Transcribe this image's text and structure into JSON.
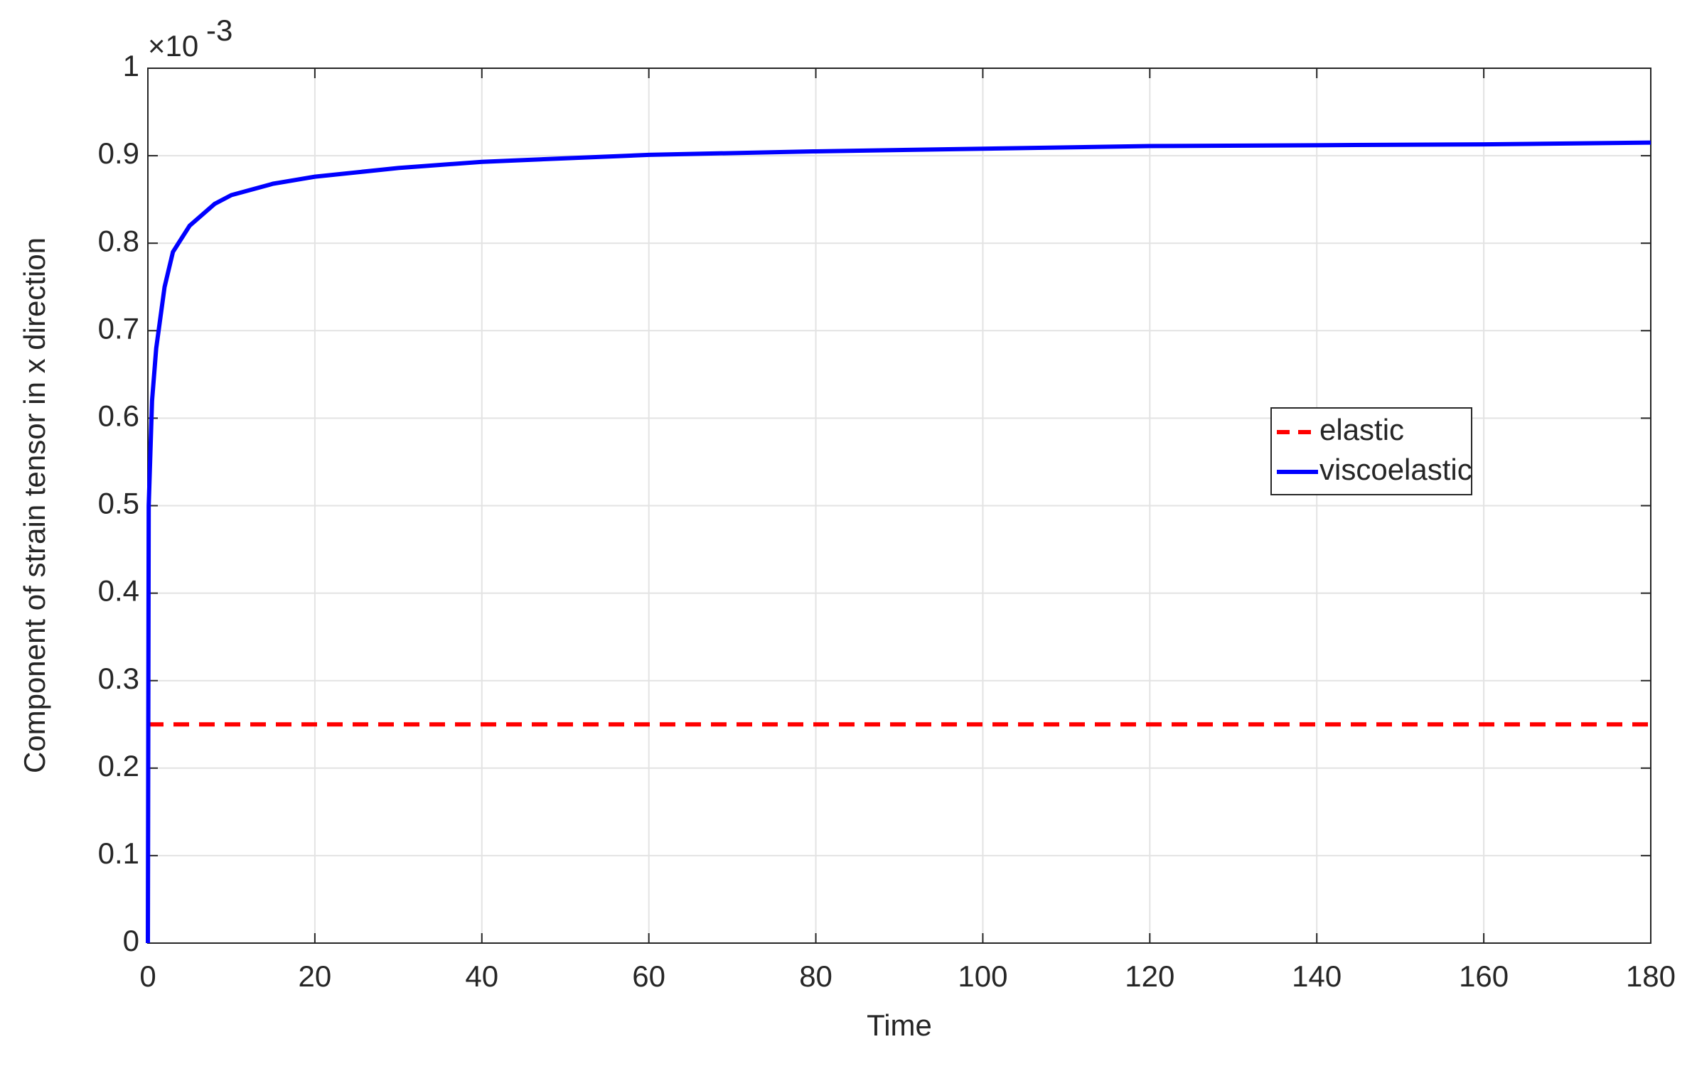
{
  "chart_data": {
    "type": "line",
    "x_label": "Time",
    "y_label": "Component of strain tensor in x direction",
    "y_scale_base": "×10",
    "y_scale_exponent": "-3",
    "x": [
      0,
      0.1,
      0.5,
      1,
      2,
      3,
      5,
      8,
      10,
      15,
      20,
      30,
      40,
      50,
      60,
      80,
      100,
      120,
      140,
      160,
      180
    ],
    "series": [
      {
        "name": "elastic",
        "color": "#ff0000",
        "dash": true,
        "values": [
          0.25,
          0.25,
          0.25,
          0.25,
          0.25,
          0.25,
          0.25,
          0.25,
          0.25,
          0.25,
          0.25,
          0.25,
          0.25,
          0.25,
          0.25,
          0.25,
          0.25,
          0.25,
          0.25,
          0.25,
          0.25
        ]
      },
      {
        "name": "viscoelastic",
        "color": "#0000ff",
        "dash": false,
        "values": [
          0,
          0.5,
          0.62,
          0.68,
          0.75,
          0.79,
          0.82,
          0.845,
          0.855,
          0.868,
          0.876,
          0.886,
          0.893,
          0.897,
          0.901,
          0.905,
          0.908,
          0.911,
          0.912,
          0.913,
          0.915
        ]
      }
    ],
    "xlim": [
      0,
      180
    ],
    "xticks": [
      0,
      20,
      40,
      60,
      80,
      100,
      120,
      140,
      160,
      180
    ],
    "ylim": [
      0,
      1
    ],
    "yticks": [
      0,
      0.1,
      0.2,
      0.3,
      0.4,
      0.5,
      0.6,
      0.7,
      0.8,
      0.9,
      1
    ],
    "grid": true,
    "legend": "right"
  }
}
